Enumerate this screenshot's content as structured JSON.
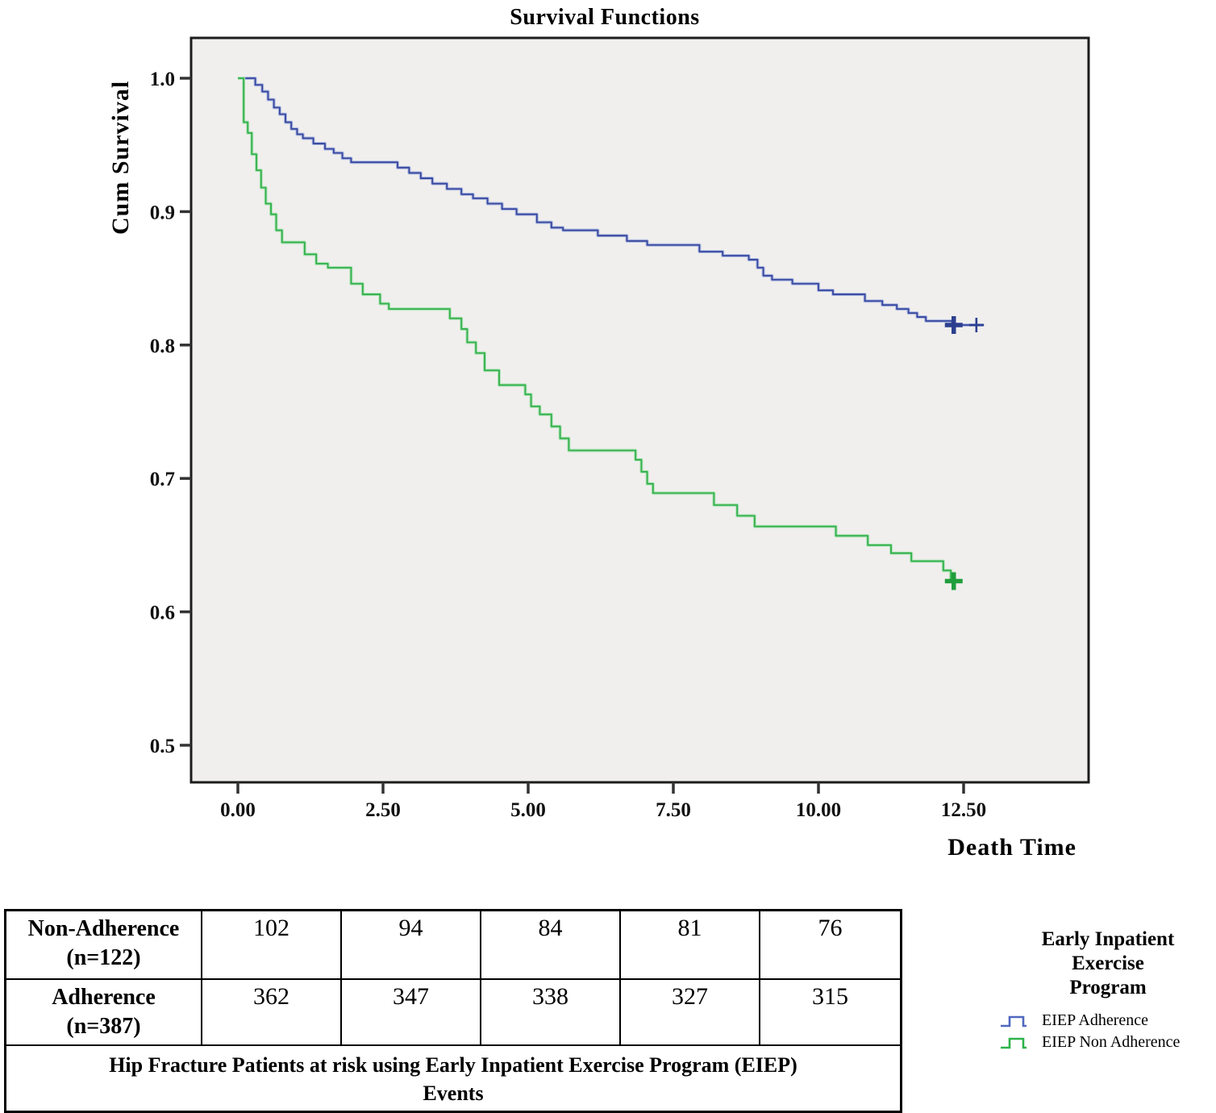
{
  "chart_data": {
    "type": "line",
    "subtype": "kaplan-meier-step",
    "title": "Survival Functions",
    "xlabel": "Death Time",
    "ylabel": "Cum Survival",
    "xlim": [
      -0.81,
      14.65
    ],
    "ylim": [
      0.472,
      1.03
    ],
    "grid": false,
    "plot_bg": "#f0efed",
    "frame_color": "#1c1c1c",
    "x_ticks": [
      0,
      2.5,
      5,
      7.5,
      10,
      12.5
    ],
    "x_tick_labels": [
      "0.00",
      "2.50",
      "5.00",
      "7.50",
      "10.00",
      "12.50"
    ],
    "y_ticks": [
      1.0,
      0.9,
      0.8,
      0.7,
      0.6,
      0.5
    ],
    "y_tick_labels": [
      "1.0",
      "0.9",
      "0.8",
      "0.7",
      "0.6",
      "0.5"
    ],
    "legend_position": "right-bottom",
    "series": [
      {
        "name": "EIEP Adherence",
        "color": "#36469e",
        "casing": "#adb8e0",
        "censor_color": "#2c3f8f",
        "end_t": 12.85,
        "censors": [
          {
            "t": 12.33,
            "v": 0.815,
            "style": "bold"
          },
          {
            "t": 12.72,
            "v": 0.815,
            "style": "light"
          }
        ],
        "points": [
          [
            0,
            1.0
          ],
          [
            0.3,
            0.995
          ],
          [
            0.42,
            0.99
          ],
          [
            0.52,
            0.984
          ],
          [
            0.62,
            0.978
          ],
          [
            0.72,
            0.973
          ],
          [
            0.82,
            0.967
          ],
          [
            0.92,
            0.962
          ],
          [
            1.02,
            0.958
          ],
          [
            1.12,
            0.955
          ],
          [
            1.3,
            0.951
          ],
          [
            1.5,
            0.947
          ],
          [
            1.65,
            0.944
          ],
          [
            1.8,
            0.94
          ],
          [
            1.95,
            0.937
          ],
          [
            2.75,
            0.933
          ],
          [
            2.95,
            0.929
          ],
          [
            3.15,
            0.925
          ],
          [
            3.35,
            0.921
          ],
          [
            3.6,
            0.917
          ],
          [
            3.85,
            0.913
          ],
          [
            4.05,
            0.91
          ],
          [
            4.3,
            0.906
          ],
          [
            4.55,
            0.902
          ],
          [
            4.8,
            0.898
          ],
          [
            5.15,
            0.892
          ],
          [
            5.4,
            0.888
          ],
          [
            5.6,
            0.886
          ],
          [
            6.2,
            0.882
          ],
          [
            6.7,
            0.878
          ],
          [
            7.05,
            0.875
          ],
          [
            7.95,
            0.87
          ],
          [
            8.35,
            0.867
          ],
          [
            8.8,
            0.864
          ],
          [
            8.95,
            0.858
          ],
          [
            9.05,
            0.852
          ],
          [
            9.2,
            0.849
          ],
          [
            9.55,
            0.846
          ],
          [
            10.0,
            0.841
          ],
          [
            10.25,
            0.838
          ],
          [
            10.8,
            0.833
          ],
          [
            11.1,
            0.83
          ],
          [
            11.35,
            0.827
          ],
          [
            11.55,
            0.824
          ],
          [
            11.7,
            0.821
          ],
          [
            11.85,
            0.818
          ],
          [
            12.3,
            0.815
          ]
        ]
      },
      {
        "name": "EIEP Non Adherence",
        "color": "#33b04a",
        "casing": "#ace2b6",
        "censor_color": "#1f9e3d",
        "end_t": 12.42,
        "censors": [
          {
            "t": 12.33,
            "v": 0.623,
            "style": "bold"
          }
        ],
        "points": [
          [
            0,
            1.0
          ],
          [
            0.1,
            0.967
          ],
          [
            0.17,
            0.959
          ],
          [
            0.24,
            0.943
          ],
          [
            0.32,
            0.931
          ],
          [
            0.4,
            0.918
          ],
          [
            0.48,
            0.906
          ],
          [
            0.57,
            0.898
          ],
          [
            0.66,
            0.886
          ],
          [
            0.76,
            0.877
          ],
          [
            1.15,
            0.868
          ],
          [
            1.35,
            0.861
          ],
          [
            1.55,
            0.858
          ],
          [
            1.95,
            0.846
          ],
          [
            2.15,
            0.838
          ],
          [
            2.45,
            0.831
          ],
          [
            2.6,
            0.827
          ],
          [
            3.65,
            0.82
          ],
          [
            3.85,
            0.812
          ],
          [
            3.95,
            0.802
          ],
          [
            4.1,
            0.794
          ],
          [
            4.25,
            0.781
          ],
          [
            4.5,
            0.77
          ],
          [
            4.95,
            0.763
          ],
          [
            5.05,
            0.754
          ],
          [
            5.2,
            0.748
          ],
          [
            5.4,
            0.739
          ],
          [
            5.55,
            0.73
          ],
          [
            5.7,
            0.721
          ],
          [
            6.85,
            0.714
          ],
          [
            6.95,
            0.705
          ],
          [
            7.05,
            0.696
          ],
          [
            7.15,
            0.689
          ],
          [
            8.2,
            0.68
          ],
          [
            8.6,
            0.672
          ],
          [
            8.9,
            0.664
          ],
          [
            10.3,
            0.657
          ],
          [
            10.85,
            0.65
          ],
          [
            11.25,
            0.644
          ],
          [
            11.6,
            0.638
          ],
          [
            12.15,
            0.631
          ],
          [
            12.28,
            0.623
          ]
        ]
      }
    ]
  },
  "risk_table": {
    "rows": [
      {
        "label_line1": "Non-Adherence",
        "label_line2": "(n=122)",
        "values": [
          "102",
          "94",
          "84",
          "81",
          "76"
        ]
      },
      {
        "label_line1": "Adherence",
        "label_line2": "(n=387)",
        "values": [
          "362",
          "347",
          "338",
          "327",
          "315"
        ]
      }
    ],
    "caption_line1": "Hip Fracture Patients at risk using Early Inpatient Exercise Program (EIEP)",
    "caption_line2": "Events"
  },
  "legend": {
    "title_line1": "Early Inpatient",
    "title_line2": "Exercise",
    "title_line3": "Program",
    "entries": [
      {
        "label": "EIEP Adherence",
        "glyph_color": "#5068c0"
      },
      {
        "label": "EIEP Non Adherence",
        "glyph_color": "#2db34a"
      }
    ]
  }
}
